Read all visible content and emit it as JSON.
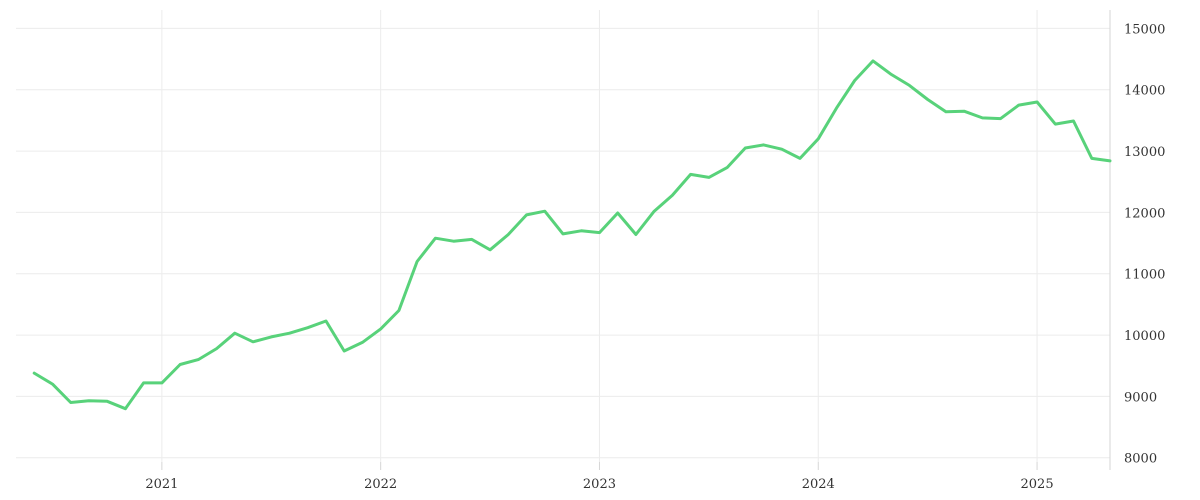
{
  "chart_data": {
    "type": "line",
    "title": "",
    "xlabel": "",
    "ylabel": "",
    "x_ticks": [
      "2021",
      "2022",
      "2023",
      "2024",
      "2025"
    ],
    "y_ticks": [
      8000,
      9000,
      10000,
      11000,
      12000,
      13000,
      14000,
      15000
    ],
    "ylim": [
      7800,
      15300
    ],
    "xlim": [
      "2020-05",
      "2025-05"
    ],
    "grid": true,
    "y_axis_position": "right",
    "legend": "none",
    "colors": {
      "series": "#58d27a",
      "grid": "#ececec",
      "axis": "#d6d6d6"
    },
    "series": [
      {
        "x": [
          "2020-06",
          "2020-07",
          "2020-08",
          "2020-09",
          "2020-10",
          "2020-11",
          "2020-12",
          "2021-01",
          "2021-02",
          "2021-03",
          "2021-04",
          "2021-05",
          "2021-06",
          "2021-07",
          "2021-08",
          "2021-09",
          "2021-10",
          "2021-11",
          "2021-12",
          "2022-01",
          "2022-02",
          "2022-03",
          "2022-04",
          "2022-05",
          "2022-06",
          "2022-07",
          "2022-08",
          "2022-09",
          "2022-10",
          "2022-11",
          "2022-12",
          "2023-01",
          "2023-02",
          "2023-03",
          "2023-04",
          "2023-05",
          "2023-06",
          "2023-07",
          "2023-08",
          "2023-09",
          "2023-10",
          "2023-11",
          "2023-12",
          "2024-01",
          "2024-02",
          "2024-03",
          "2024-04",
          "2024-05",
          "2024-06",
          "2024-07",
          "2024-08",
          "2024-09",
          "2024-10",
          "2024-11",
          "2024-12",
          "2025-01",
          "2025-02",
          "2025-03",
          "2025-04",
          "2025-05"
        ],
        "values": [
          9380,
          9200,
          8900,
          8930,
          8920,
          8800,
          9220,
          9220,
          9520,
          9600,
          9780,
          10030,
          9890,
          9970,
          10030,
          10120,
          10230,
          9740,
          9880,
          10100,
          10400,
          11200,
          11580,
          11530,
          11560,
          11390,
          11640,
          11960,
          12020,
          11650,
          11700,
          11670,
          11990,
          11640,
          12020,
          12280,
          12620,
          12570,
          12730,
          13050,
          13100,
          13030,
          12880,
          13200,
          13700,
          14150,
          14470,
          14250,
          14070,
          13840,
          13640,
          13650,
          13540,
          13530,
          13750,
          13800,
          13440,
          13490,
          12880,
          12840
        ]
      }
    ]
  }
}
